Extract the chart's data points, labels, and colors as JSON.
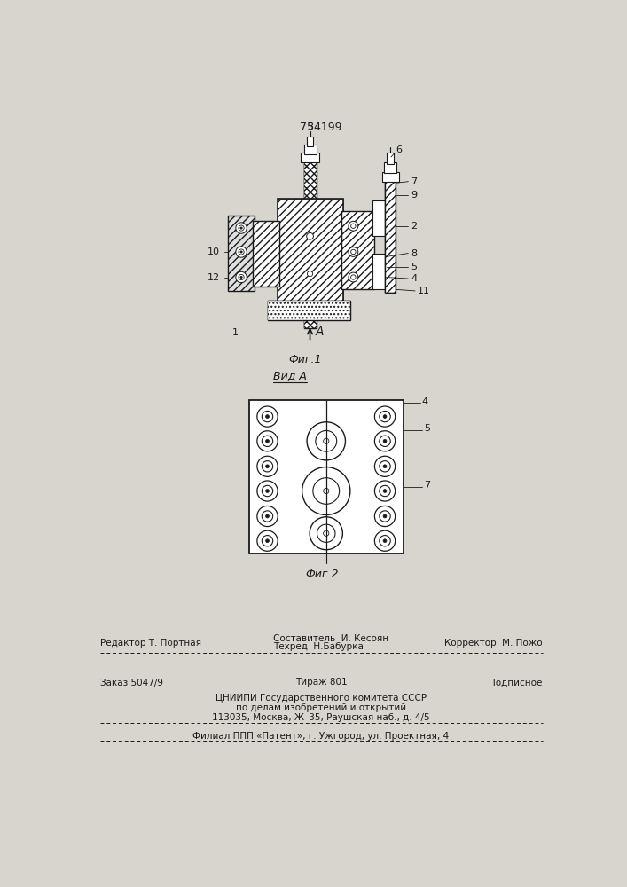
{
  "patent_number": "754199",
  "bg_color": "#d8d4ce",
  "draw_color": "#1a1a1a",
  "fig1_label": "Фиг.1",
  "fig2_label": "Фиг.2",
  "view_label": "Вид A",
  "arrow_label": "A",
  "bottom_line1_left": "Редактор Т. Портная",
  "bottom_line1_center1": "Составитель  И. Кесоян",
  "bottom_line1_center2": "Техред  Н.Бабурка",
  "bottom_line1_right": "Корректор  М. Пожо",
  "bottom_line2_left": "Заказ 5047/9",
  "bottom_line2_center": "Тираж 801",
  "bottom_line2_right": "Подписное",
  "bottom_org1": "ЦНИИПИ Государственного комитета СССР",
  "bottom_org2": "по делам изобретений и открытий",
  "bottom_org3": "113035, Москва, Ж–35, Раушская наб., д. 4/5",
  "bottom_filial": "Филиал ППП «Патент», г. Ужгород, ул. Проектная, 4"
}
